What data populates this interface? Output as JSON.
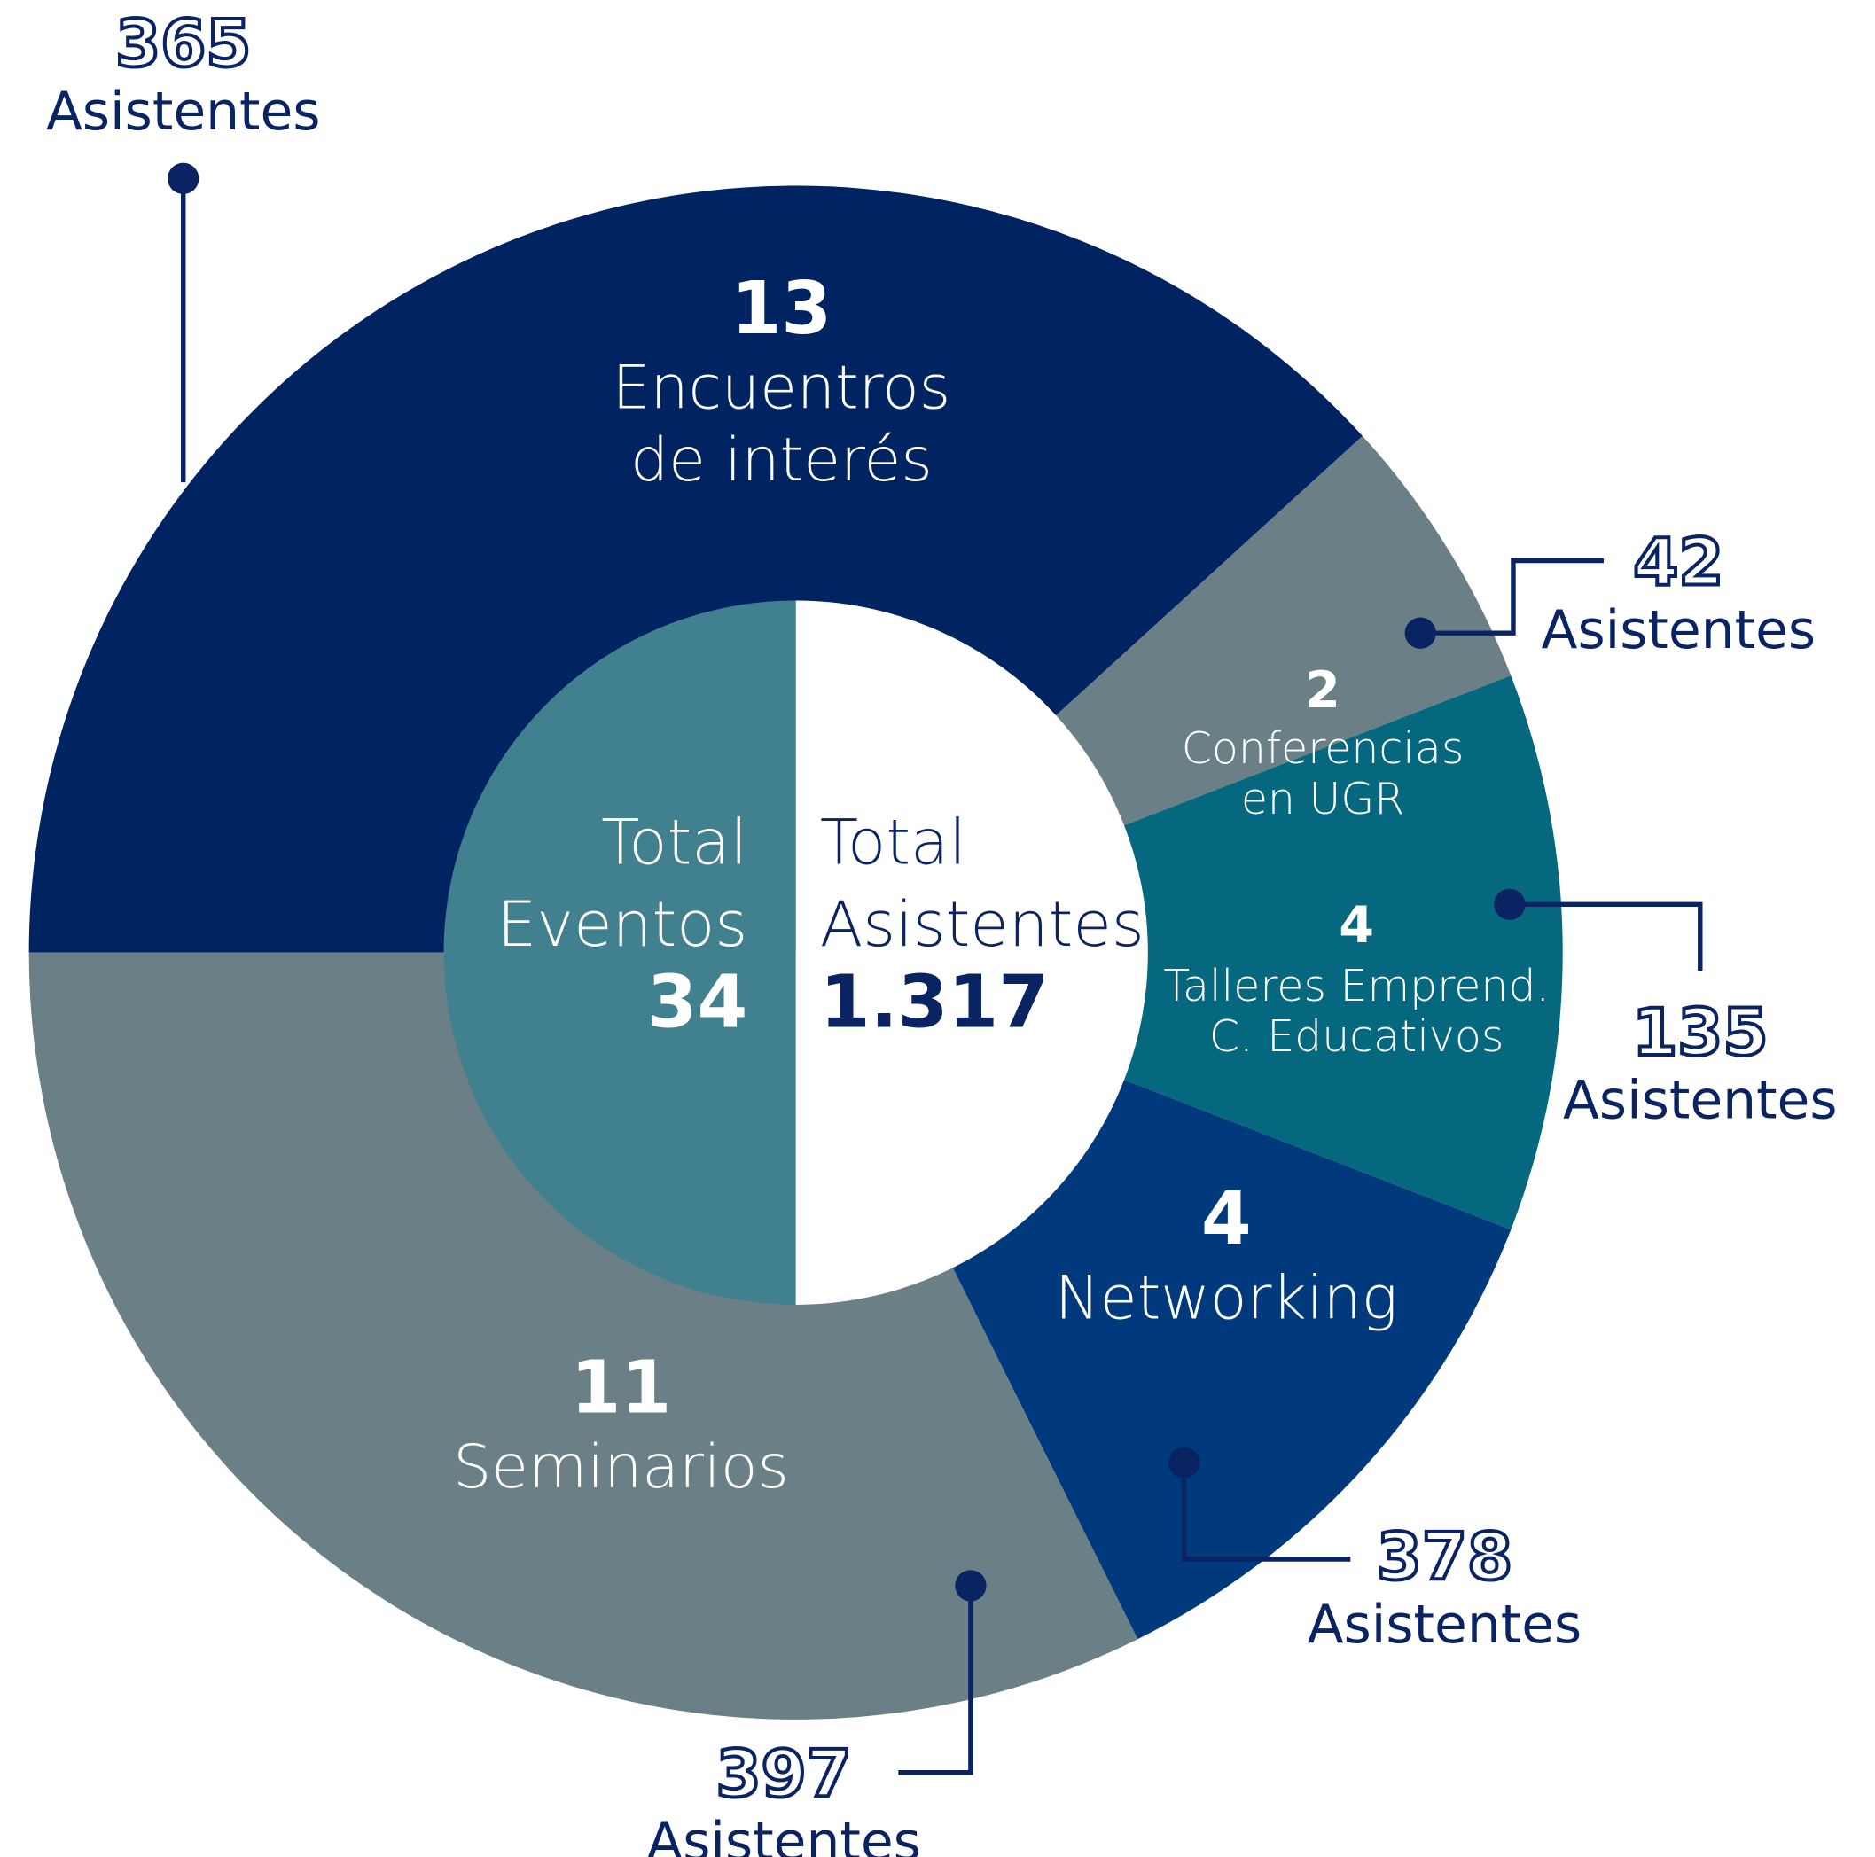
{
  "chart_data": {
    "type": "donut",
    "categories": [
      [
        "Encuentros",
        "de interés"
      ],
      [
        "Conferencias",
        "en UGR"
      ],
      [
        "Talleres Emprend.",
        "C. Educativos"
      ],
      [
        "Networking"
      ],
      [
        "Seminarios"
      ]
    ],
    "values": [
      13,
      2,
      4,
      4,
      11
    ],
    "colors": [
      "#002361",
      "#6b8086",
      "#05687e",
      "#003a7d",
      "#6b8086"
    ],
    "attendees": [
      365,
      42,
      135,
      378,
      397
    ],
    "attendees_label": "Asistentes",
    "total_events": {
      "label": [
        "Total",
        "Eventos"
      ],
      "value": 34
    },
    "total_attendees": {
      "label": [
        "Total",
        "Asistentes"
      ],
      "value": {
        "value": 1317,
        "label": "1.317"
      }
    }
  }
}
